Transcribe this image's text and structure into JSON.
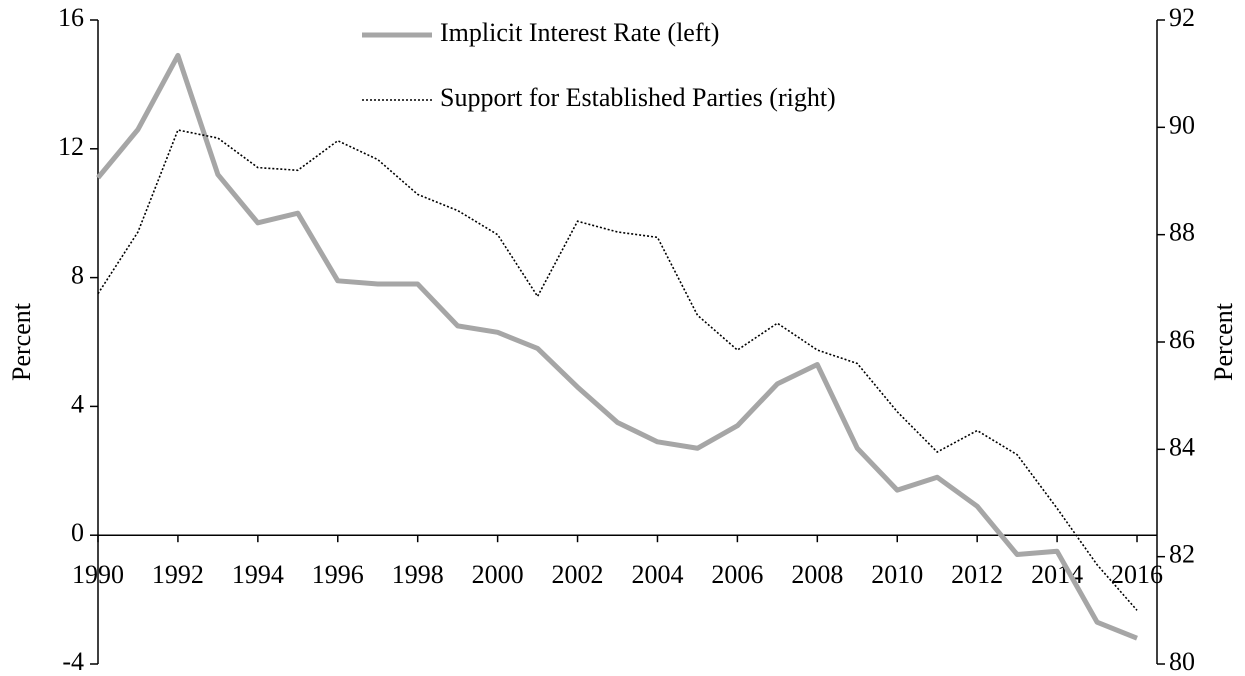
{
  "chart_data": {
    "type": "line",
    "x": [
      1990,
      1991,
      1992,
      1993,
      1994,
      1995,
      1996,
      1997,
      1998,
      1999,
      2000,
      2001,
      2002,
      2003,
      2004,
      2005,
      2006,
      2007,
      2008,
      2009,
      2010,
      2011,
      2012,
      2013,
      2014,
      2015,
      2016
    ],
    "series": [
      {
        "name": "Implicit Interest Rate (left)",
        "color": "#a6a6a6",
        "style": "solid",
        "values": [
          11.1,
          12.6,
          14.9,
          11.2,
          9.7,
          10.0,
          7.9,
          7.8,
          7.8,
          6.5,
          6.3,
          5.8,
          4.6,
          3.5,
          2.9,
          2.7,
          3.4,
          4.7,
          5.3,
          2.7,
          1.4,
          1.8,
          0.9,
          -0.6,
          -0.5,
          -2.7,
          -3.2
        ]
      },
      {
        "name": "Support for Established Parties (right)",
        "color": "#000000",
        "style": "dotted",
        "axis": "y2",
        "values": [
          86.9,
          88.05,
          89.95,
          89.8,
          89.25,
          89.2,
          89.75,
          89.4,
          88.75,
          88.45,
          88.0,
          86.85,
          88.25,
          88.05,
          87.95,
          86.5,
          85.85,
          86.35,
          85.85,
          85.6,
          84.7,
          83.95,
          84.35,
          83.9,
          82.9,
          81.85,
          81.0
        ]
      }
    ],
    "xlim": [
      1990,
      2016.5
    ],
    "xticks": [
      1990,
      1992,
      1994,
      1996,
      1998,
      2000,
      2002,
      2004,
      2006,
      2008,
      2010,
      2012,
      2014,
      2016
    ],
    "ylim": [
      -4,
      16
    ],
    "yticks": [
      -4,
      0,
      4,
      8,
      12,
      16
    ],
    "y2lim": [
      80,
      92
    ],
    "y2ticks": [
      80,
      82,
      84,
      86,
      88,
      90,
      92
    ],
    "ylabel": "Percent",
    "y2label": "Percent"
  }
}
